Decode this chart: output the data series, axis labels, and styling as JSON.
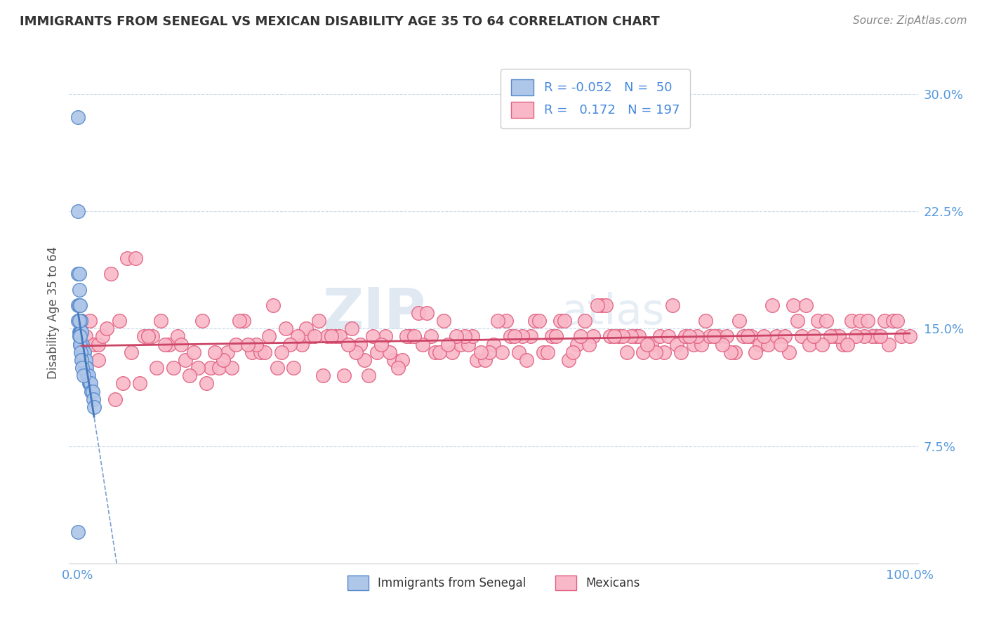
{
  "title": "IMMIGRANTS FROM SENEGAL VS MEXICAN DISABILITY AGE 35 TO 64 CORRELATION CHART",
  "source_text": "Source: ZipAtlas.com",
  "ylabel": "Disability Age 35 to 64",
  "xlim": [
    -0.01,
    1.01
  ],
  "ylim": [
    0.0,
    0.32
  ],
  "yticks": [
    0.075,
    0.15,
    0.225,
    0.3
  ],
  "ytick_labels": [
    "7.5%",
    "15.0%",
    "22.5%",
    "30.0%"
  ],
  "xtick_labels": [
    "0.0%",
    "100.0%"
  ],
  "watermark_zip": "ZIP",
  "watermark_atlas": "atlas",
  "bg_color": "#ffffff",
  "grid_color": "#c8d8e8",
  "senegal_color": "#aec6e8",
  "senegal_edge": "#5588cc",
  "mexican_color": "#f9b8c8",
  "mexican_edge": "#e06080",
  "trend_senegal_color": "#4477bb",
  "trend_mexican_color": "#cc4466",
  "title_color": "#333333",
  "source_color": "#888888",
  "tick_color": "#5599dd",
  "senegal_x": [
    0.001,
    0.001,
    0.001,
    0.001,
    0.002,
    0.002,
    0.002,
    0.002,
    0.002,
    0.003,
    0.003,
    0.003,
    0.003,
    0.004,
    0.004,
    0.004,
    0.005,
    0.005,
    0.005,
    0.006,
    0.006,
    0.006,
    0.007,
    0.007,
    0.008,
    0.008,
    0.009,
    0.009,
    0.01,
    0.01,
    0.011,
    0.012,
    0.013,
    0.014,
    0.015,
    0.016,
    0.017,
    0.018,
    0.019,
    0.02,
    0.002,
    0.003,
    0.004,
    0.005,
    0.006,
    0.007,
    0.001,
    0.002,
    0.003,
    0.001
  ],
  "senegal_y": [
    0.285,
    0.225,
    0.185,
    0.165,
    0.185,
    0.175,
    0.165,
    0.155,
    0.148,
    0.165,
    0.155,
    0.148,
    0.14,
    0.155,
    0.148,
    0.14,
    0.148,
    0.14,
    0.135,
    0.14,
    0.135,
    0.13,
    0.135,
    0.13,
    0.135,
    0.128,
    0.13,
    0.125,
    0.13,
    0.125,
    0.125,
    0.12,
    0.12,
    0.115,
    0.115,
    0.115,
    0.11,
    0.11,
    0.105,
    0.1,
    0.145,
    0.14,
    0.135,
    0.13,
    0.125,
    0.12,
    0.155,
    0.155,
    0.145,
    0.02
  ],
  "mexican_x": [
    0.005,
    0.01,
    0.015,
    0.02,
    0.025,
    0.03,
    0.035,
    0.04,
    0.05,
    0.06,
    0.07,
    0.08,
    0.09,
    0.1,
    0.11,
    0.12,
    0.13,
    0.14,
    0.15,
    0.16,
    0.17,
    0.18,
    0.19,
    0.2,
    0.21,
    0.22,
    0.23,
    0.24,
    0.25,
    0.26,
    0.27,
    0.28,
    0.29,
    0.3,
    0.31,
    0.32,
    0.33,
    0.34,
    0.35,
    0.36,
    0.37,
    0.38,
    0.39,
    0.4,
    0.41,
    0.42,
    0.43,
    0.44,
    0.45,
    0.46,
    0.47,
    0.48,
    0.49,
    0.5,
    0.51,
    0.52,
    0.53,
    0.54,
    0.55,
    0.56,
    0.57,
    0.58,
    0.59,
    0.6,
    0.61,
    0.62,
    0.63,
    0.64,
    0.65,
    0.66,
    0.67,
    0.68,
    0.69,
    0.7,
    0.71,
    0.72,
    0.73,
    0.74,
    0.75,
    0.76,
    0.77,
    0.78,
    0.79,
    0.8,
    0.81,
    0.82,
    0.83,
    0.84,
    0.85,
    0.86,
    0.87,
    0.88,
    0.89,
    0.9,
    0.91,
    0.92,
    0.93,
    0.94,
    0.95,
    0.96,
    0.97,
    0.98,
    0.99,
    1.0,
    0.045,
    0.075,
    0.115,
    0.155,
    0.195,
    0.235,
    0.275,
    0.315,
    0.355,
    0.395,
    0.435,
    0.475,
    0.515,
    0.555,
    0.595,
    0.635,
    0.675,
    0.715,
    0.755,
    0.795,
    0.835,
    0.875,
    0.915,
    0.955,
    0.025,
    0.065,
    0.105,
    0.145,
    0.185,
    0.225,
    0.265,
    0.305,
    0.345,
    0.385,
    0.425,
    0.465,
    0.505,
    0.545,
    0.585,
    0.625,
    0.665,
    0.705,
    0.745,
    0.785,
    0.825,
    0.865,
    0.905,
    0.945,
    0.985,
    0.055,
    0.095,
    0.135,
    0.175,
    0.215,
    0.255,
    0.295,
    0.335,
    0.375,
    0.415,
    0.455,
    0.495,
    0.535,
    0.575,
    0.615,
    0.655,
    0.695,
    0.735,
    0.775,
    0.815,
    0.855,
    0.895,
    0.935,
    0.975,
    0.085,
    0.125,
    0.165,
    0.205,
    0.245,
    0.285,
    0.325,
    0.365,
    0.405,
    0.445,
    0.485,
    0.525,
    0.565,
    0.605,
    0.645,
    0.685,
    0.725,
    0.765,
    0.805,
    0.845,
    0.885,
    0.925,
    0.965
  ],
  "mexican_y": [
    0.155,
    0.145,
    0.155,
    0.14,
    0.14,
    0.145,
    0.15,
    0.185,
    0.155,
    0.195,
    0.195,
    0.145,
    0.145,
    0.155,
    0.14,
    0.145,
    0.13,
    0.135,
    0.155,
    0.125,
    0.125,
    0.135,
    0.14,
    0.155,
    0.135,
    0.135,
    0.145,
    0.125,
    0.15,
    0.125,
    0.14,
    0.145,
    0.155,
    0.145,
    0.145,
    0.12,
    0.15,
    0.14,
    0.12,
    0.135,
    0.145,
    0.13,
    0.13,
    0.145,
    0.16,
    0.16,
    0.135,
    0.155,
    0.135,
    0.14,
    0.14,
    0.13,
    0.13,
    0.14,
    0.135,
    0.145,
    0.135,
    0.13,
    0.155,
    0.135,
    0.145,
    0.155,
    0.13,
    0.14,
    0.155,
    0.145,
    0.165,
    0.145,
    0.145,
    0.135,
    0.145,
    0.135,
    0.14,
    0.145,
    0.145,
    0.14,
    0.145,
    0.14,
    0.14,
    0.145,
    0.145,
    0.145,
    0.135,
    0.145,
    0.145,
    0.14,
    0.14,
    0.145,
    0.145,
    0.165,
    0.145,
    0.14,
    0.155,
    0.155,
    0.145,
    0.14,
    0.155,
    0.155,
    0.155,
    0.145,
    0.155,
    0.155,
    0.145,
    0.145,
    0.105,
    0.115,
    0.125,
    0.115,
    0.155,
    0.165,
    0.15,
    0.145,
    0.145,
    0.145,
    0.135,
    0.145,
    0.155,
    0.155,
    0.135,
    0.165,
    0.145,
    0.165,
    0.155,
    0.155,
    0.165,
    0.165,
    0.145,
    0.145,
    0.13,
    0.135,
    0.14,
    0.125,
    0.125,
    0.135,
    0.145,
    0.145,
    0.13,
    0.125,
    0.145,
    0.145,
    0.155,
    0.145,
    0.155,
    0.165,
    0.145,
    0.135,
    0.145,
    0.135,
    0.145,
    0.155,
    0.145,
    0.145,
    0.155,
    0.115,
    0.125,
    0.12,
    0.13,
    0.14,
    0.14,
    0.12,
    0.135,
    0.135,
    0.14,
    0.145,
    0.135,
    0.145,
    0.145,
    0.14,
    0.145,
    0.135,
    0.145,
    0.14,
    0.135,
    0.135,
    0.14,
    0.145,
    0.14,
    0.145,
    0.14,
    0.135,
    0.14,
    0.135,
    0.145,
    0.14,
    0.14,
    0.145,
    0.14,
    0.135,
    0.145,
    0.135,
    0.145,
    0.145,
    0.14,
    0.135,
    0.145,
    0.145,
    0.14,
    0.145,
    0.14,
    0.145
  ]
}
